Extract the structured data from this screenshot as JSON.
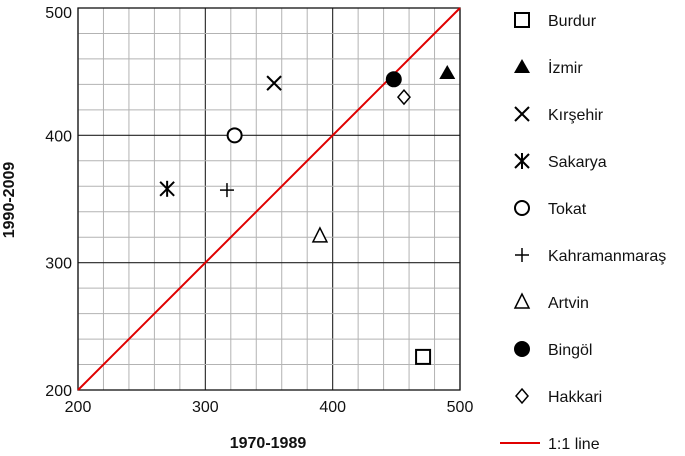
{
  "chart_data": {
    "type": "scatter",
    "xlabel": "1970-1989",
    "ylabel": "1990-2009",
    "xlim": [
      200,
      500
    ],
    "ylim": [
      200,
      500
    ],
    "xticks": [
      "200",
      "300",
      "400",
      "500"
    ],
    "yticks": [
      "200",
      "300",
      "400",
      "500"
    ],
    "grid": true,
    "minor_grid_step": 20,
    "major_grid_step": 100,
    "legend_position": "right",
    "series": [
      {
        "name": "Burdur",
        "marker": "square-open",
        "points": [
          [
            471,
            226
          ]
        ]
      },
      {
        "name": "İzmir",
        "marker": "triangle-filled",
        "points": [
          [
            490,
            449
          ]
        ]
      },
      {
        "name": "Kırşehir",
        "marker": "x",
        "points": [
          [
            354,
            441
          ]
        ]
      },
      {
        "name": "Sakarya",
        "marker": "asterisk",
        "points": [
          [
            270,
            358
          ]
        ]
      },
      {
        "name": "Tokat",
        "marker": "circle-open",
        "points": [
          [
            323,
            400
          ]
        ]
      },
      {
        "name": "Kahramanmaraş",
        "marker": "plus",
        "points": [
          [
            317,
            357
          ]
        ]
      },
      {
        "name": "Artvin",
        "marker": "triangle-open",
        "points": [
          [
            390,
            321
          ]
        ]
      },
      {
        "name": "Bingöl",
        "marker": "circle-filled",
        "points": [
          [
            448,
            444
          ]
        ]
      },
      {
        "name": "Hakkari",
        "marker": "diamond-open",
        "points": [
          [
            456,
            430
          ]
        ]
      }
    ],
    "reference_line": {
      "name": "1:1 line",
      "from": [
        200,
        200
      ],
      "to": [
        500,
        500
      ],
      "color": "#e00000"
    }
  }
}
